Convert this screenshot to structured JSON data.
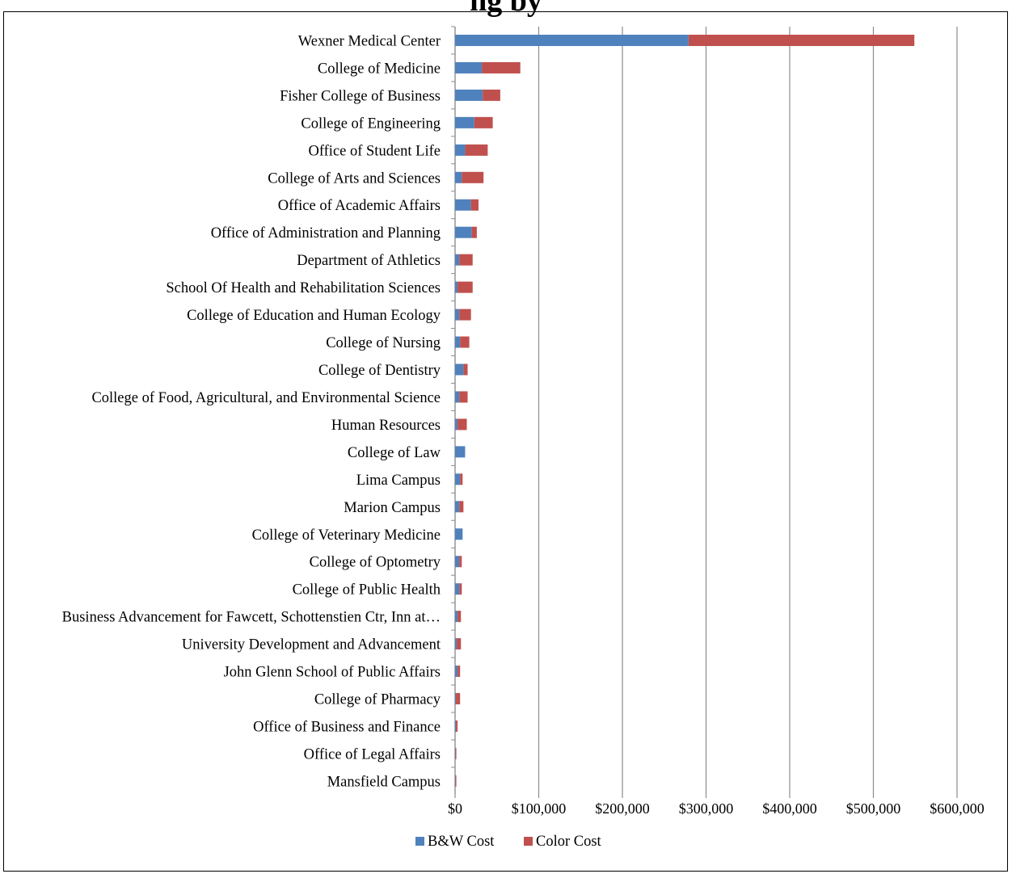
{
  "chart_data": {
    "type": "bar",
    "orientation": "horizontal",
    "stacked": true,
    "title": "ng by",
    "categories": [
      "Wexner Medical Center",
      "College of Medicine",
      "Fisher College of Business",
      "College of Engineering",
      "Office of Student Life",
      "College of Arts and Sciences",
      "Office of Academic Affairs",
      "Office of Administration and Planning",
      "Department of Athletics",
      "School Of Health and Rehabilitation Sciences",
      "College of Education and Human Ecology",
      "College of Nursing",
      "College of Dentistry",
      "College of Food, Agricultural, and Environmental Science",
      "Human Resources",
      "College of Law",
      "Lima Campus",
      "Marion Campus",
      "College of Veterinary Medicine",
      "College of Optometry",
      "College of Public Health",
      "Business Advancement for Fawcett, Schottenstien Ctr, Inn at…",
      "University Development and Advancement",
      "John Glenn School of Public Affairs",
      "College of Pharmacy",
      "Office of Business and Finance",
      "Office of Legal Affairs",
      "Mansfield Campus"
    ],
    "series": [
      {
        "name": "B&W Cost",
        "color": "#4F81BD",
        "values": [
          279000,
          32000,
          33000,
          23000,
          12000,
          8000,
          19000,
          20000,
          5000,
          3000,
          5000,
          6000,
          10000,
          5000,
          3000,
          12000,
          6000,
          5000,
          9000,
          5000,
          5000,
          3000,
          2000,
          3000,
          1000,
          1000,
          500,
          500
        ]
      },
      {
        "name": "Color Cost",
        "color": "#C0504D",
        "values": [
          270000,
          46000,
          21000,
          22000,
          27000,
          26000,
          9000,
          6000,
          16000,
          18000,
          14000,
          11000,
          5000,
          10000,
          11000,
          0,
          3000,
          5000,
          0,
          3000,
          3000,
          4000,
          5000,
          3000,
          5000,
          2000,
          1000,
          1000
        ]
      }
    ],
    "xlim": [
      0,
      600000
    ],
    "xticks": [
      "$0",
      "$100,000",
      "$200,000",
      "$300,000",
      "$400,000",
      "$500,000",
      "$600,000"
    ],
    "grid": "vertical",
    "legend": "bottom",
    "xlabel": "",
    "ylabel": ""
  }
}
